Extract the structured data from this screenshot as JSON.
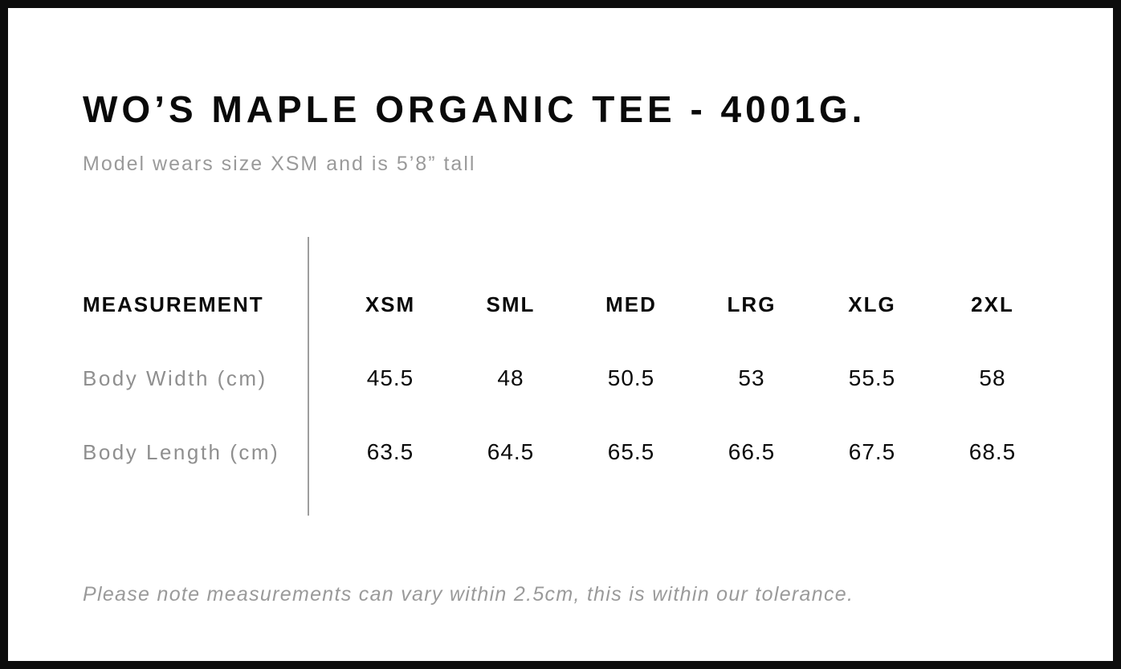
{
  "header": {
    "title": "WO’S MAPLE ORGANIC TEE - 4001G.",
    "subtitle": "Model wears size XSM and is 5’8” tall"
  },
  "table": {
    "measurement_header": "MEASUREMENT",
    "size_headers": [
      "XSM",
      "SML",
      "MED",
      "LRG",
      "XLG",
      "2XL"
    ],
    "rows": [
      {
        "label": "Body Width (cm)",
        "values": [
          "45.5",
          "48",
          "50.5",
          "53",
          "55.5",
          "58"
        ]
      },
      {
        "label": "Body Length (cm)",
        "values": [
          "63.5",
          "64.5",
          "65.5",
          "66.5",
          "67.5",
          "68.5"
        ]
      }
    ]
  },
  "footer": {
    "note": "Please note measurements can vary within 2.5cm, this is within our tolerance."
  },
  "colors": {
    "frame": "#0c0c0c",
    "background": "#ffffff",
    "text_primary": "#0a0a0a",
    "text_secondary": "#9a9a9a",
    "divider": "#9e9e9e"
  },
  "chart_data": {
    "type": "table",
    "title": "WO’S MAPLE ORGANIC TEE - 4001G.",
    "subtitle": "Model wears size XSM and is 5’8” tall",
    "columns": [
      "MEASUREMENT",
      "XSM",
      "SML",
      "MED",
      "LRG",
      "XLG",
      "2XL"
    ],
    "rows": [
      {
        "label": "Body Width (cm)",
        "values": [
          45.5,
          48,
          50.5,
          53,
          55.5,
          58
        ]
      },
      {
        "label": "Body Length (cm)",
        "values": [
          63.5,
          64.5,
          65.5,
          66.5,
          67.5,
          68.5
        ]
      }
    ],
    "note": "Please note measurements can vary within 2.5cm, this is within our tolerance.",
    "layout_hints": {
      "first_column_divider": true,
      "grid": "off",
      "header_row_bold": true
    }
  }
}
